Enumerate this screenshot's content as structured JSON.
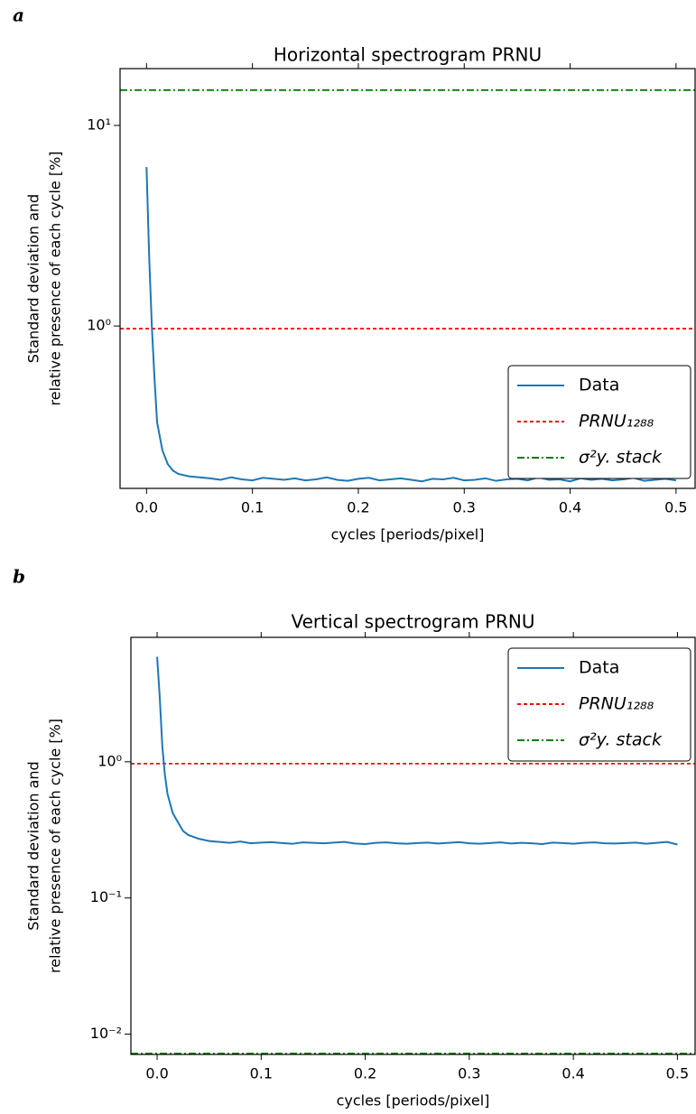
{
  "chart_data": [
    {
      "type": "line",
      "panel_label": "a",
      "title": "Horizontal spectrogram PRNU",
      "xlabel": "cycles [periods/pixel]",
      "ylabel": [
        "Standard deviation and",
        "relative presence of each cycle [%]"
      ],
      "log_y": true,
      "legend": "lower right",
      "x": [
        0,
        0.0025,
        0.005,
        0.0075,
        0.01,
        0.015,
        0.02,
        0.025,
        0.03,
        0.04,
        0.05,
        0.06,
        0.07,
        0.08,
        0.09,
        0.1,
        0.11,
        0.12,
        0.13,
        0.14,
        0.15,
        0.16,
        0.17,
        0.18,
        0.19,
        0.2,
        0.21,
        0.22,
        0.23,
        0.24,
        0.25,
        0.26,
        0.27,
        0.28,
        0.29,
        0.3,
        0.31,
        0.32,
        0.33,
        0.34,
        0.35,
        0.36,
        0.37,
        0.38,
        0.39,
        0.4,
        0.41,
        0.42,
        0.43,
        0.44,
        0.45,
        0.46,
        0.47,
        0.48,
        0.49,
        0.5
      ],
      "series": [
        {
          "name": "Data",
          "color": "#1f77b4",
          "values": [
            6.2,
            2.2,
            1.0,
            0.55,
            0.33,
            0.24,
            0.205,
            0.19,
            0.183,
            0.178,
            0.176,
            0.174,
            0.171,
            0.176,
            0.172,
            0.17,
            0.175,
            0.173,
            0.171,
            0.174,
            0.17,
            0.172,
            0.176,
            0.171,
            0.169,
            0.173,
            0.175,
            0.17,
            0.172,
            0.174,
            0.171,
            0.168,
            0.173,
            0.172,
            0.175,
            0.17,
            0.171,
            0.174,
            0.169,
            0.172,
            0.173,
            0.17,
            0.176,
            0.171,
            0.172,
            0.168,
            0.174,
            0.171,
            0.173,
            0.17,
            0.172,
            0.175,
            0.169,
            0.171,
            0.173,
            0.17
          ]
        }
      ],
      "hlines": [
        {
          "name": "PRNU₁₂₈₈",
          "color": "#ff0000",
          "y": 0.97,
          "linestyle": "dashed"
        },
        {
          "name": "σ²y. stack",
          "color": "#008000",
          "y": 15.0,
          "linestyle": "dashdot"
        }
      ],
      "xlim": [
        -0.025,
        0.518
      ],
      "xticks": [
        {
          "value": 0,
          "label": "0.0"
        },
        0.1,
        0.2,
        0.3,
        0.4,
        0.5
      ],
      "ylim": [
        0.155,
        19.2
      ],
      "yticks": [
        {
          "value": 1,
          "label": "10⁰"
        },
        {
          "value": 10,
          "label": "10¹"
        }
      ]
    },
    {
      "type": "line",
      "panel_label": "b",
      "title": "Vertical spectrogram PRNU",
      "xlabel": "cycles [periods/pixel]",
      "ylabel": [
        "Standard deviation and",
        "relative presence of each cycle [%]"
      ],
      "log_y": true,
      "legend": "upper right",
      "x": [
        0,
        0.0025,
        0.005,
        0.0075,
        0.01,
        0.015,
        0.02,
        0.025,
        0.03,
        0.04,
        0.05,
        0.06,
        0.07,
        0.08,
        0.09,
        0.1,
        0.11,
        0.12,
        0.13,
        0.14,
        0.15,
        0.16,
        0.17,
        0.18,
        0.19,
        0.2,
        0.21,
        0.22,
        0.23,
        0.24,
        0.25,
        0.26,
        0.27,
        0.28,
        0.29,
        0.3,
        0.31,
        0.32,
        0.33,
        0.34,
        0.35,
        0.36,
        0.37,
        0.38,
        0.39,
        0.4,
        0.41,
        0.42,
        0.43,
        0.44,
        0.45,
        0.46,
        0.47,
        0.48,
        0.49,
        0.5
      ],
      "series": [
        {
          "name": "Data",
          "color": "#1f77b4",
          "values": [
            5.9,
            3.0,
            1.3,
            0.8,
            0.58,
            0.42,
            0.36,
            0.31,
            0.29,
            0.272,
            0.262,
            0.258,
            0.254,
            0.26,
            0.252,
            0.255,
            0.257,
            0.253,
            0.25,
            0.256,
            0.254,
            0.252,
            0.255,
            0.258,
            0.251,
            0.249,
            0.254,
            0.256,
            0.252,
            0.25,
            0.253,
            0.255,
            0.251,
            0.254,
            0.257,
            0.252,
            0.25,
            0.253,
            0.256,
            0.251,
            0.254,
            0.252,
            0.249,
            0.255,
            0.253,
            0.25,
            0.254,
            0.256,
            0.252,
            0.251,
            0.253,
            0.255,
            0.25,
            0.254,
            0.258,
            0.247
          ]
        }
      ],
      "hlines": [
        {
          "name": "PRNU₁₂₈₈",
          "color": "#ff0000",
          "y": 0.97,
          "linestyle": "dashed"
        },
        {
          "name": "σ²y. stack",
          "color": "#008000",
          "y": 0.0072,
          "linestyle": "dashdot"
        }
      ],
      "xlim": [
        -0.0252,
        0.517
      ],
      "xticks": [
        {
          "value": 0,
          "label": "0.0"
        },
        0.1,
        0.2,
        0.3,
        0.4,
        0.5
      ],
      "ylim": [
        0.0071,
        8.2
      ],
      "yticks": [
        {
          "value": 0.01,
          "label": "10⁻²"
        },
        {
          "value": 0.1,
          "label": "10⁻¹"
        },
        {
          "value": 1,
          "label": "10⁰"
        }
      ]
    }
  ]
}
